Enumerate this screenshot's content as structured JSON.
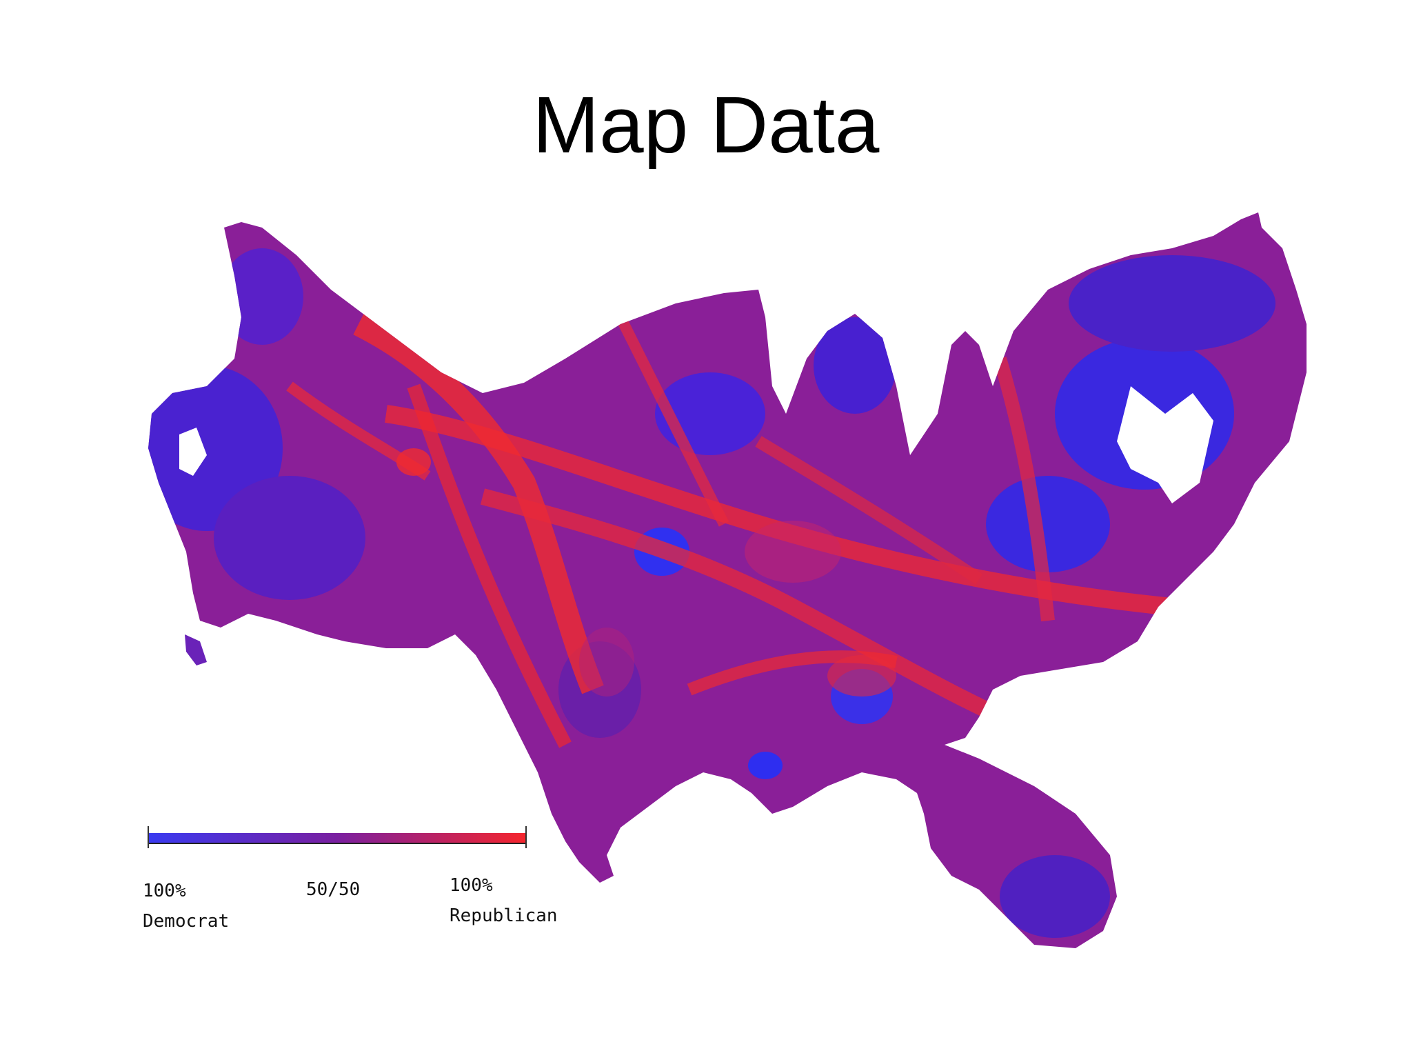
{
  "title": "Map Data",
  "colors": {
    "democrat": "#3a2cf0",
    "mixed": "#8a1f98",
    "republican": "#f02a30",
    "gradient_mid": "#6a24b8"
  },
  "legend": {
    "left_label_line1": "100%",
    "left_label_line2": "Democrat",
    "middle_label": "50/50",
    "right_label_line1": "100%",
    "right_label_line2": "Republican"
  }
}
